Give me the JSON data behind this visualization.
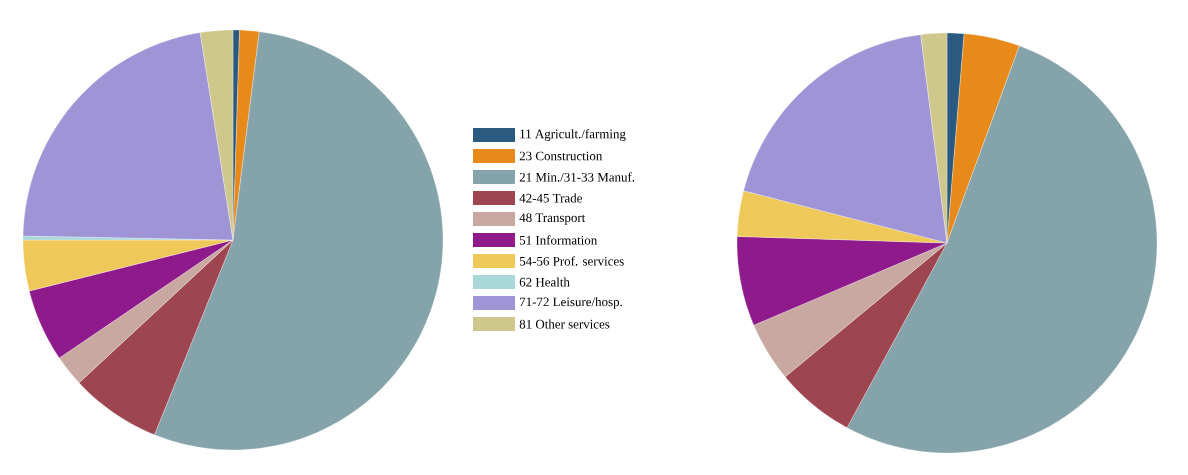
{
  "chart_data": [
    {
      "type": "pie",
      "categories": [
        "11 Agricult./farming",
        "23 Construction",
        "21 Min./31-33 Manuf.",
        "42-45 Trade",
        "48 Transport",
        "51 Information",
        "54-56 Prof. services",
        "62 Health",
        "71-72 Leisure/hosp.",
        "81 Other services"
      ],
      "values": [
        0.5,
        1.5,
        54.1,
        7,
        2.4,
        5.6,
        3.9,
        0.3,
        22.2,
        2.5
      ],
      "colors": [
        "#2a5a80",
        "#e88a1a",
        "#84a3aa",
        "#9e4650",
        "#c8a8a0",
        "#8e1a8c",
        "#efc85a",
        "#a8d8d8",
        "#9f94d6",
        "#cfc88c"
      ],
      "legend": "right"
    },
    {
      "type": "pie",
      "categories": [
        null,
        null,
        null,
        null,
        null,
        null,
        null,
        null,
        null,
        null
      ],
      "values": [
        1.3,
        4.3,
        52.3,
        6.1,
        4.6,
        6.9,
        3.5,
        0,
        19,
        2.0
      ],
      "colors": [
        "#2a5a80",
        "#e88a1a",
        "#84a3aa",
        "#9e4650",
        "#c8a8a0",
        "#8e1a8c",
        "#efc85a",
        "#a8d8d8",
        "#9f94d6",
        "#cfc88c"
      ]
    }
  ]
}
